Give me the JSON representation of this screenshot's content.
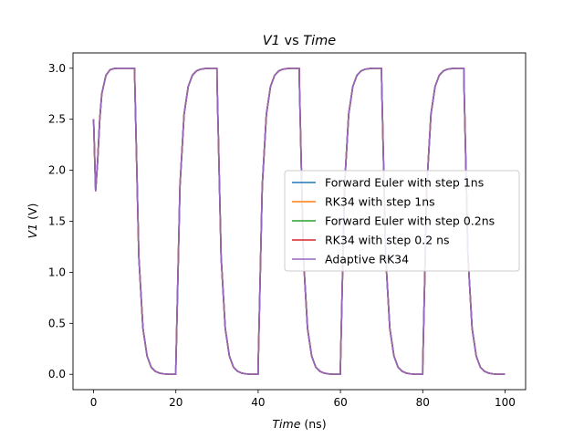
{
  "chart_data": {
    "type": "line",
    "title": {
      "var": "V1",
      "sep": " vs ",
      "var2": "Time"
    },
    "xlabel": {
      "var": "Time",
      "unit": " (ns)"
    },
    "ylabel": {
      "var": "V1",
      "unit": " (V)"
    },
    "xlim": [
      -5,
      105
    ],
    "ylim": [
      -0.15,
      3.15
    ],
    "xticks": [
      0,
      20,
      40,
      60,
      80,
      100
    ],
    "xtick_labels": [
      "0",
      "20",
      "40",
      "60",
      "80",
      "100"
    ],
    "yticks": [
      0.0,
      0.5,
      1.0,
      1.5,
      2.0,
      2.5,
      3.0
    ],
    "ytick_labels": [
      "0.0",
      "0.5",
      "1.0",
      "1.5",
      "2.0",
      "2.5",
      "3.0"
    ],
    "grid": false,
    "legend_position": "center-right",
    "series": [
      {
        "name": "Forward Euler with step 1ns",
        "color": "#1f77b4"
      },
      {
        "name": "RK34 with step 1ns",
        "color": "#ff7f0e"
      },
      {
        "name": "Forward Euler with step 0.2ns",
        "color": "#2ca02c"
      },
      {
        "name": "RK34 with step 0.2 ns",
        "color": "#d62728"
      },
      {
        "name": "Adaptive RK34",
        "color": "#9467bd"
      }
    ],
    "x": [
      0,
      0.5,
      1,
      1.5,
      2,
      3,
      4,
      5,
      6,
      7,
      8,
      9,
      9.99,
      10,
      11,
      12,
      13,
      14,
      15,
      16,
      17,
      18,
      19,
      19.99,
      20,
      21,
      22,
      23,
      24,
      25,
      26,
      27,
      28,
      29,
      29.99,
      30,
      31,
      32,
      33,
      34,
      35,
      36,
      37,
      38,
      39,
      39.99,
      40,
      41,
      42,
      43,
      44,
      45,
      46,
      47,
      48,
      49,
      49.99,
      50,
      51,
      52,
      53,
      54,
      55,
      56,
      57,
      58,
      59,
      59.99,
      60,
      61,
      62,
      63,
      64,
      65,
      66,
      67,
      68,
      69,
      69.99,
      70,
      71,
      72,
      73,
      74,
      75,
      76,
      77,
      78,
      79,
      79.99,
      80,
      81,
      82,
      83,
      84,
      85,
      86,
      87,
      88,
      89,
      89.99,
      90,
      91,
      92,
      93,
      94,
      95,
      96,
      97,
      98,
      99,
      100
    ],
    "values": [
      2.5,
      1.8,
      2.1,
      2.5,
      2.75,
      2.93,
      2.985,
      2.997,
      3.0,
      3.0,
      3.0,
      3.0,
      3.0,
      2.9,
      1.15,
      0.45,
      0.18,
      0.07,
      0.03,
      0.012,
      0.005,
      0.002,
      0.001,
      0.0,
      0.08,
      1.85,
      2.55,
      2.82,
      2.93,
      2.973,
      2.99,
      2.996,
      2.999,
      3.0,
      3.0,
      2.9,
      1.15,
      0.45,
      0.18,
      0.07,
      0.03,
      0.012,
      0.005,
      0.002,
      0.001,
      0.0,
      0.08,
      1.85,
      2.55,
      2.82,
      2.93,
      2.973,
      2.99,
      2.996,
      2.999,
      3.0,
      3.0,
      2.9,
      1.15,
      0.45,
      0.18,
      0.07,
      0.03,
      0.012,
      0.005,
      0.002,
      0.001,
      0.0,
      0.08,
      1.85,
      2.55,
      2.82,
      2.93,
      2.973,
      2.99,
      2.996,
      2.999,
      3.0,
      3.0,
      2.9,
      1.15,
      0.45,
      0.18,
      0.07,
      0.03,
      0.012,
      0.005,
      0.002,
      0.001,
      0.0,
      0.08,
      1.85,
      2.55,
      2.82,
      2.93,
      2.973,
      2.99,
      2.996,
      2.999,
      3.0,
      3.0,
      2.9,
      1.15,
      0.45,
      0.18,
      0.07,
      0.03,
      0.012,
      0.005,
      0.002,
      0.001,
      0.0
    ]
  }
}
